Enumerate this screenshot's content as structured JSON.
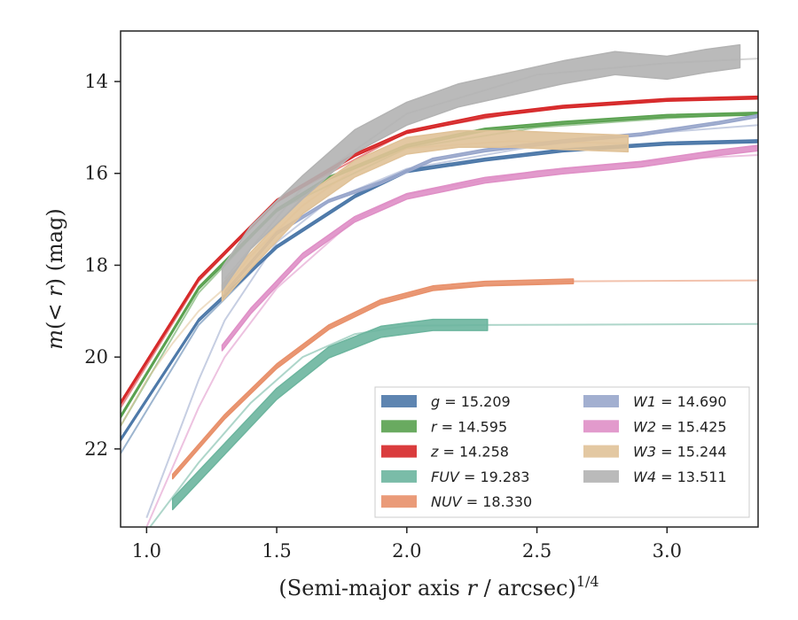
{
  "chart_data": {
    "type": "line",
    "xlabel": "(Semi-major axis r / arcsec)^1/4",
    "ylabel": "m(< r) (mag)",
    "xlim": [
      0.9,
      3.35
    ],
    "ylim": [
      23.7,
      12.9
    ],
    "y_inverted": true,
    "xticks": [
      1.0,
      1.5,
      2.0,
      2.5,
      3.0
    ],
    "xtick_labels": [
      "1.0",
      "1.5",
      "2.0",
      "2.5",
      "3.0"
    ],
    "yticks": [
      14,
      16,
      18,
      20,
      22
    ],
    "ytick_labels": [
      "14",
      "16",
      "18",
      "20",
      "22"
    ],
    "grid": false,
    "legend_position": "lower-right",
    "series": [
      {
        "name": "g = 15.209",
        "color": "#4c78a8",
        "band_x": [
          0.9,
          1.2,
          1.5,
          1.8,
          2.0,
          2.3,
          2.6,
          3.0,
          3.35
        ],
        "band_y": [
          21.8,
          19.2,
          17.6,
          16.5,
          15.95,
          15.7,
          15.5,
          15.35,
          15.3
        ],
        "band_half_width": 0.03,
        "model_x": [
          0.9,
          1.2,
          1.5,
          1.8,
          2.0,
          2.5,
          3.0,
          3.35
        ],
        "model_y": [
          22.1,
          19.3,
          17.6,
          16.5,
          15.95,
          15.55,
          15.35,
          15.3
        ]
      },
      {
        "name": "r = 14.595",
        "color": "#59a14f",
        "band_x": [
          0.9,
          1.2,
          1.5,
          1.7,
          2.0,
          2.3,
          2.6,
          3.0,
          3.35
        ],
        "band_y": [
          21.3,
          18.5,
          16.8,
          16.1,
          15.4,
          15.05,
          14.9,
          14.75,
          14.7
        ],
        "band_half_width": 0.03,
        "model_x": [
          0.9,
          1.2,
          1.5,
          2.0,
          2.5,
          3.0,
          3.35
        ],
        "model_y": [
          21.5,
          18.6,
          16.8,
          15.45,
          15.0,
          14.8,
          14.7
        ]
      },
      {
        "name": "z = 14.258",
        "color": "#d62728",
        "band_x": [
          0.9,
          1.2,
          1.5,
          1.8,
          2.0,
          2.3,
          2.6,
          3.0,
          3.35
        ],
        "band_y": [
          21.0,
          18.3,
          16.6,
          15.6,
          15.1,
          14.75,
          14.55,
          14.4,
          14.35
        ],
        "band_half_width": 0.03,
        "model_x": [
          0.9,
          1.2,
          1.5,
          2.0,
          2.5,
          3.0,
          3.35
        ],
        "model_y": [
          21.1,
          18.35,
          16.6,
          15.1,
          14.6,
          14.4,
          14.35
        ]
      },
      {
        "name": "FUV = 19.283",
        "color": "#6cb59e",
        "band_x": [
          1.1,
          1.3,
          1.5,
          1.7,
          1.9,
          2.1,
          2.31
        ],
        "band_y": [
          23.2,
          22.0,
          20.8,
          19.9,
          19.45,
          19.3,
          19.3
        ],
        "band_half_width": 0.12,
        "model_x": [
          1.0,
          1.2,
          1.4,
          1.6,
          1.8,
          2.0,
          2.3,
          3.35
        ],
        "model_y": [
          23.8,
          22.3,
          21.0,
          20.0,
          19.5,
          19.32,
          19.3,
          19.28
        ]
      },
      {
        "name": "NUV = 18.330",
        "color": "#e8906a",
        "band_x": [
          1.1,
          1.3,
          1.5,
          1.7,
          1.9,
          2.1,
          2.3,
          2.64
        ],
        "band_y": [
          22.6,
          21.3,
          20.2,
          19.35,
          18.8,
          18.5,
          18.4,
          18.35
        ],
        "band_half_width": 0.05,
        "model_x": [
          1.1,
          1.3,
          1.5,
          1.7,
          1.9,
          2.1,
          2.64,
          3.35
        ],
        "model_y": [
          22.6,
          21.3,
          20.2,
          19.35,
          18.8,
          18.5,
          18.35,
          18.33
        ]
      },
      {
        "name": "W1 = 14.690",
        "color": "#98a6cb",
        "band_x": [
          1.3,
          1.5,
          1.7,
          1.9,
          2.1,
          2.3,
          2.6,
          2.9,
          3.2,
          3.35
        ],
        "band_y": [
          18.6,
          17.3,
          16.6,
          16.2,
          15.7,
          15.5,
          15.3,
          15.15,
          14.9,
          14.75
        ],
        "band_half_width": 0.03,
        "model_x": [
          1.0,
          1.1,
          1.2,
          1.3,
          1.5,
          1.7,
          2.0,
          2.5,
          3.0,
          3.35
        ],
        "model_y": [
          23.5,
          22.0,
          20.5,
          19.2,
          17.5,
          16.6,
          15.9,
          15.4,
          15.1,
          14.95
        ]
      },
      {
        "name": "W2 = 15.425",
        "color": "#df8fc6",
        "band_x": [
          1.29,
          1.4,
          1.6,
          1.8,
          2.0,
          2.3,
          2.6,
          2.9,
          3.2,
          3.35
        ],
        "band_y": [
          19.8,
          19.0,
          17.8,
          17.0,
          16.5,
          16.15,
          15.95,
          15.8,
          15.55,
          15.45
        ],
        "band_half_width": 0.06,
        "model_x": [
          1.0,
          1.1,
          1.2,
          1.3,
          1.5,
          1.8,
          2.0,
          2.5,
          3.0,
          3.35
        ],
        "model_y": [
          23.7,
          22.4,
          21.1,
          20.0,
          18.5,
          17.0,
          16.45,
          15.95,
          15.7,
          15.6
        ]
      },
      {
        "name": "W3 = 15.244",
        "color": "#e0c298",
        "band_x": [
          1.29,
          1.4,
          1.6,
          1.8,
          2.0,
          2.2,
          2.4,
          2.6,
          2.85
        ],
        "band_y": [
          18.6,
          17.9,
          16.7,
          15.9,
          15.4,
          15.25,
          15.25,
          15.3,
          15.35
        ],
        "band_half_width": 0.18,
        "model_x": [
          0.9,
          1.0,
          1.1,
          1.2,
          1.3,
          1.4,
          1.6,
          1.8,
          2.0,
          2.4,
          2.85
        ],
        "model_y": [
          21.5,
          20.5,
          19.7,
          19.0,
          18.5,
          17.8,
          16.7,
          15.9,
          15.45,
          15.3,
          15.35
        ]
      },
      {
        "name": "W4 = 13.511",
        "color": "#b3b3b3",
        "band_x": [
          1.29,
          1.4,
          1.6,
          1.8,
          2.0,
          2.2,
          2.4,
          2.6,
          2.8,
          3.0,
          3.15,
          3.28
        ],
        "band_y": [
          18.3,
          17.4,
          16.3,
          15.3,
          14.7,
          14.3,
          14.05,
          13.8,
          13.6,
          13.7,
          13.55,
          13.45
        ],
        "band_half_width": 0.25,
        "model_x": [
          1.3,
          1.6,
          2.0,
          2.5,
          3.0,
          3.35
        ],
        "model_y": [
          18.3,
          16.3,
          14.7,
          13.85,
          13.6,
          13.5
        ]
      }
    ]
  }
}
